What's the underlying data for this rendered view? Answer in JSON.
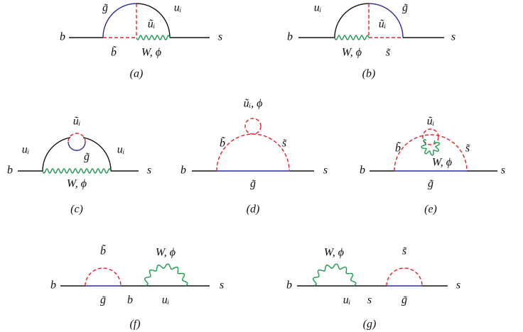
{
  "diagrams": [
    {
      "caption": "(a)",
      "labels": [
        "b",
        "s",
        "g̃",
        "uᵢ",
        "ũᵢ",
        "b̃",
        "W, ϕ"
      ]
    },
    {
      "caption": "(b)",
      "labels": [
        "b",
        "s",
        "uᵢ",
        "g̃",
        "ũᵢ",
        "W, ϕ",
        "s̃"
      ]
    },
    {
      "caption": "(c)",
      "labels": [
        "b",
        "s",
        "ũᵢ",
        "uᵢ",
        "uᵢ",
        "g̃",
        "W, ϕ"
      ]
    },
    {
      "caption": "(d)",
      "labels": [
        "b",
        "s",
        "ũᵢ, ϕ",
        "b̃",
        "s̃",
        "g̃"
      ]
    },
    {
      "caption": "(e)",
      "labels": [
        "b",
        "s",
        "ũᵢ",
        "b̃",
        "s̃",
        "W, ϕ",
        "g̃"
      ]
    },
    {
      "caption": "(f)",
      "labels": [
        "b",
        "s",
        "b̃",
        "g̃",
        "b",
        "W, ϕ",
        "uᵢ"
      ]
    },
    {
      "caption": "(g)",
      "labels": [
        "b",
        "s",
        "W, ϕ",
        "uᵢ",
        "s",
        "s̃",
        "g̃"
      ]
    }
  ]
}
